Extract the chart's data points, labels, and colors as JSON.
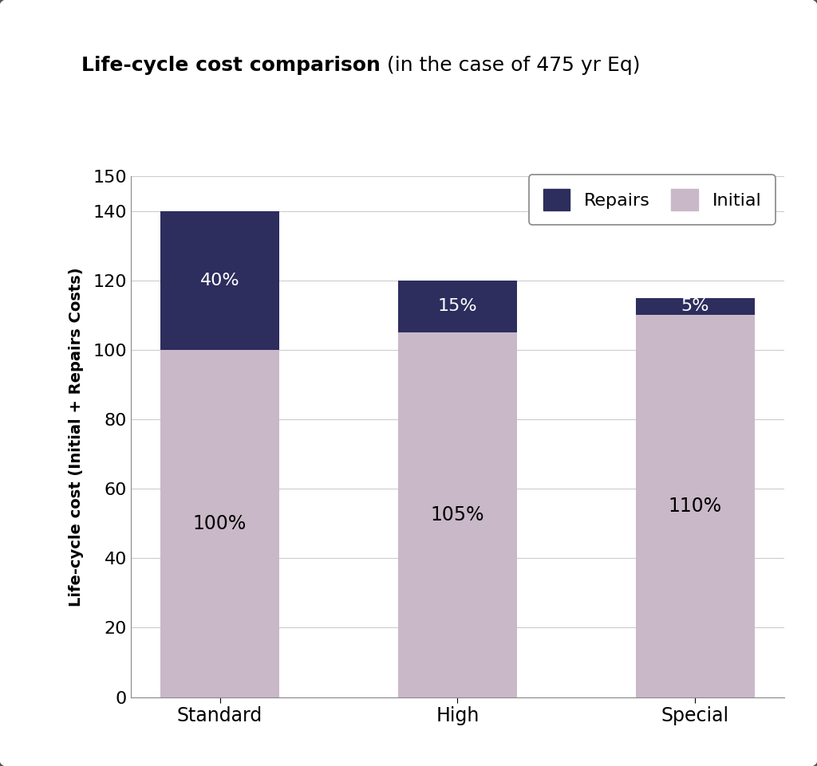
{
  "title_bold": "Life-cycle cost comparison",
  "title_normal": " (in the case of 475 yr Eq)",
  "categories": [
    "Standard",
    "High",
    "Special"
  ],
  "initial_values": [
    100,
    105,
    110
  ],
  "repairs_values": [
    40,
    15,
    5
  ],
  "initial_labels": [
    "100%",
    "105%",
    "110%"
  ],
  "repairs_labels": [
    "40%",
    "15%",
    "5%"
  ],
  "initial_color": "#C9B8C8",
  "repairs_color": "#2D2D5E",
  "ylabel": "Life-cycle cost (Initial + Repairs Costs)",
  "ylim": [
    0,
    150
  ],
  "yticks": [
    0,
    20,
    40,
    60,
    80,
    100,
    120,
    140,
    150
  ],
  "legend_repairs": "Repairs",
  "legend_initial": "Initial",
  "background_color": "#FFFFFF",
  "figure_bg": "#FFFFFF",
  "bar_width": 0.5,
  "title_fontsize": 18,
  "label_fontsize": 14,
  "tick_fontsize": 14,
  "legend_fontsize": 15,
  "initial_label_fontsize": 17,
  "repairs_label_fontsize": 16
}
